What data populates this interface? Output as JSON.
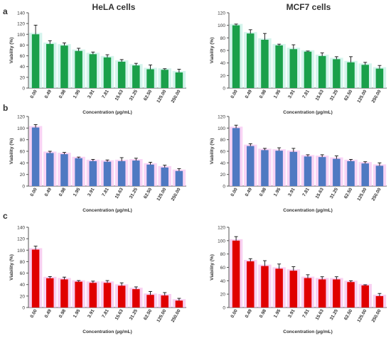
{
  "figure": {
    "row_labels": [
      "a",
      "b",
      "c"
    ],
    "column_titles": [
      "HeLA cells",
      "MCF7 cells"
    ]
  },
  "colors": {
    "green": "#1aa04a",
    "green_halo": "#c6f0e6",
    "blue": "#4f79c2",
    "blue_halo": "#f7c6f2",
    "red": "#e00000",
    "red_halo": "#f6c0ec",
    "axis": "#555555",
    "text": "#333333"
  },
  "chart_data": [
    {
      "type": "bar",
      "panel": "a-HeLA",
      "color": "green",
      "title": "HeLA cells",
      "xlabel": "Concentration (µg/mL)",
      "ylabel": "Viability (%)",
      "ylim": [
        0,
        140
      ],
      "yticks": [
        0,
        20,
        40,
        60,
        80,
        100,
        120,
        140
      ],
      "categories": [
        "0.00",
        "0.49",
        "0.98",
        "1.95",
        "3.91",
        "7.81",
        "15.63",
        "31.25",
        "62.50",
        "125.00",
        "250.00"
      ],
      "values": [
        100,
        82,
        79,
        69,
        63,
        57,
        49,
        42,
        35,
        34,
        29
      ],
      "errors": [
        17,
        6,
        5,
        5,
        4,
        5,
        4,
        4,
        8,
        2,
        6
      ]
    },
    {
      "type": "bar",
      "panel": "a-MCF7",
      "color": "green",
      "title": "MCF7 cells",
      "xlabel": "Concentration (µg/mL)",
      "ylabel": "Viability (%)",
      "ylim": [
        0,
        120
      ],
      "yticks": [
        0,
        20,
        40,
        60,
        80,
        100,
        120
      ],
      "categories": [
        "0.00",
        "0.49",
        "0.98",
        "1.95",
        "3.91",
        "7.81",
        "15.63",
        "31.25",
        "62.50",
        "125.00",
        "250.00"
      ],
      "values": [
        100,
        87,
        77,
        68,
        62,
        58,
        51,
        46,
        41,
        37,
        31
      ],
      "errors": [
        2,
        6,
        10,
        2,
        7,
        1,
        5,
        4,
        9,
        4,
        5
      ]
    },
    {
      "type": "bar",
      "panel": "b-HeLA",
      "color": "blue",
      "xlabel": "Concentration (µg/mL)",
      "ylabel": "Viability (%)",
      "ylim": [
        0,
        120
      ],
      "yticks": [
        0,
        20,
        40,
        60,
        80,
        100,
        120
      ],
      "categories": [
        "0.00",
        "0.49",
        "0.98",
        "1.95",
        "3.91",
        "7.81",
        "15.63",
        "31.25",
        "62.50",
        "125.00",
        "250.00"
      ],
      "values": [
        101,
        57,
        55,
        48,
        43,
        42,
        43,
        44,
        37,
        32,
        26
      ],
      "errors": [
        5,
        3,
        3,
        2,
        3,
        3,
        6,
        4,
        4,
        4,
        4
      ]
    },
    {
      "type": "bar",
      "panel": "b-MCF7",
      "color": "blue",
      "xlabel": "Concentration (µg/mL)",
      "ylabel": "Viability (%)",
      "ylim": [
        0,
        120
      ],
      "yticks": [
        0,
        20,
        40,
        60,
        80,
        100,
        120
      ],
      "categories": [
        "0.00",
        "0.49",
        "0.98",
        "1.95",
        "3.91",
        "7.81",
        "15.63",
        "31.25",
        "62.50",
        "125.00",
        "250.00"
      ],
      "values": [
        100,
        69,
        62,
        61,
        59,
        51,
        50,
        47,
        43,
        39,
        35
      ],
      "errors": [
        5,
        4,
        3,
        5,
        6,
        3,
        4,
        5,
        3,
        3,
        5
      ]
    },
    {
      "type": "bar",
      "panel": "c-HeLA",
      "color": "red",
      "xlabel": "Concentration (µg/mL)",
      "ylabel": "Viability (%)",
      "ylim": [
        0,
        140
      ],
      "yticks": [
        0,
        20,
        40,
        60,
        80,
        100,
        120,
        140
      ],
      "categories": [
        "0.00",
        "0.49",
        "0.98",
        "1.95",
        "3.91",
        "7.81",
        "15.63",
        "31.25",
        "62.50",
        "125.00",
        "250.00"
      ],
      "values": [
        101,
        51,
        49,
        45,
        43,
        43,
        38,
        32,
        22,
        21,
        12
      ],
      "errors": [
        6,
        3,
        4,
        2,
        3,
        4,
        5,
        4,
        6,
        5,
        4
      ]
    },
    {
      "type": "bar",
      "panel": "c-MCF7",
      "color": "red",
      "xlabel": "Concentration (µg/mL)",
      "ylabel": "Viability (%)",
      "ylim": [
        0,
        120
      ],
      "yticks": [
        0,
        20,
        40,
        60,
        80,
        100,
        120
      ],
      "categories": [
        "0.00",
        "0.49",
        "0.98",
        "1.95",
        "3.91",
        "7.81",
        "15.63",
        "31.25",
        "62.50",
        "125.00",
        "250.00"
      ],
      "values": [
        100,
        69,
        62,
        58,
        55,
        44,
        42,
        42,
        38,
        33,
        17
      ],
      "errors": [
        6,
        4,
        8,
        7,
        6,
        5,
        4,
        4,
        2,
        1,
        4
      ]
    }
  ]
}
